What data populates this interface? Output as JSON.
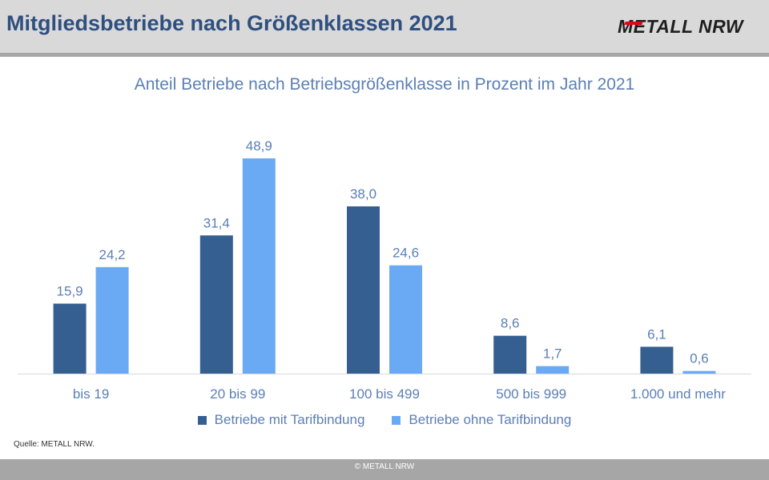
{
  "header": {
    "title": "Mitgliedsbetriebe nach Größenklassen 2021",
    "logo": "METALL NRW"
  },
  "source": "Quelle: METALL NRW.",
  "footer": {
    "copyright": "© METALL NRW"
  },
  "colors": {
    "series_1": "#365f91",
    "series_2": "#6aaaf5",
    "text": "#5b7fb6",
    "title": "#2f4f7f"
  },
  "chart_data": {
    "type": "bar",
    "title": "Anteil Betriebe nach Betriebsgrößenklasse in Prozent im Jahr 2021",
    "categories": [
      "bis 19",
      "20 bis 99",
      "100 bis 499",
      "500 bis 999",
      "1.000 und mehr"
    ],
    "series": [
      {
        "name": "Betriebe mit Tarifbindung",
        "values": [
          15.9,
          31.4,
          38.0,
          8.6,
          6.1
        ],
        "labels": [
          "15,9",
          "31,4",
          "38,0",
          "8,6",
          "6,1"
        ]
      },
      {
        "name": "Betriebe ohne Tarifbindung",
        "values": [
          24.2,
          48.9,
          24.6,
          1.7,
          0.6
        ],
        "labels": [
          "24,2",
          "48,9",
          "24,6",
          "1,7",
          "0,6"
        ]
      }
    ],
    "ylim": [
      0,
      50
    ],
    "grid": false,
    "legend": "bottom"
  }
}
